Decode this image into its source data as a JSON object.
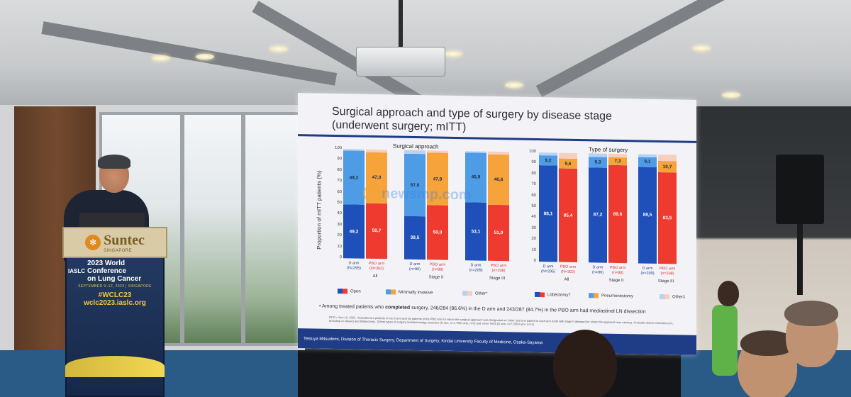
{
  "slide": {
    "title_line1": "Surgical approach and type of surgery by disease stage",
    "title_line2": "(underwent surgery; mITT)",
    "ylabel": "Proportion of mITT patients (%)",
    "footnote_main_pre": "Among treated patients who ",
    "footnote_main_bold": "completed",
    "footnote_main_post": " surgery, 246/284 (86.6%) in the D arm and 243/287 (84.7%) in the PBO arm had mediastinal LN dissection",
    "footnote_small": "DCO = Nov 10, 2022. *Includes four patients in the D arm and six patients in the PBO arm for whom the surgical approach was designated as 'other' and one patient in each arm (both with stage II disease) for whom the approach was missing. †Includes sleeve resection (n=), bronchial or sleeve) and bilobectomy. ‡Other types of surgery included wedge resection (D arm, n=1; PBO arm, n=3) and 'other' NOS (D arm, n=7; PBO arm, n=11)",
    "footer": "Tetsuya Mitsudomi, Division of Thoracic Surgery, Department of Surgery, Kindai University Faculty of Medicine, Osaka-Sayama",
    "watermark": "newsmp.com"
  },
  "chart_data": [
    {
      "type": "bar",
      "title": "Surgical approach",
      "ylabel": "Proportion of mITT patients (%)",
      "ylim": [
        0,
        100
      ],
      "yticks": [
        "0",
        "10",
        "20",
        "30",
        "40",
        "50",
        "60",
        "70",
        "80",
        "90",
        "100"
      ],
      "categories": [
        "D arm (N=295)",
        "PBO arm (N=302)",
        "D arm (n=86)",
        "PBO arm (n=88)",
        "D arm (n=209)",
        "PBO arm (n=208)"
      ],
      "groups": [
        "All",
        "Stage II",
        "Stage III"
      ],
      "series": [
        {
          "name": "Open",
          "values": [
            49.2,
            50.7,
            39.5,
            50.0,
            53.1,
            51.0
          ]
        },
        {
          "name": "Minimally invasive",
          "values": [
            49.2,
            47.0,
            57.0,
            47.9,
            45.9,
            46.6
          ]
        },
        {
          "name": "Other*",
          "values": [
            1.6,
            2.3,
            3.5,
            2.1,
            1.0,
            2.4
          ]
        }
      ],
      "data_labels": {
        "Open": [
          "49,2",
          "50,7",
          "39,5",
          "50,0",
          "53,1",
          "51,0"
        ],
        "Minimally invasive": [
          "49,2",
          "47,0",
          "57,0",
          "47,9",
          "45,9",
          "46,6"
        ]
      },
      "legend": [
        "Open",
        "Minimally invasive",
        "Other*"
      ],
      "legend_position": "bottom"
    },
    {
      "type": "bar",
      "title": "Type of surgery",
      "ylim": [
        0,
        100
      ],
      "yticks": [
        "0",
        "10",
        "20",
        "30",
        "40",
        "50",
        "60",
        "70",
        "80",
        "90",
        "100"
      ],
      "categories": [
        "D arm (N=295)",
        "PBO arm (N=302)",
        "D arm (n=86)",
        "PBO arm (n=88)",
        "D arm (n=209)",
        "PBO arm (n=208)"
      ],
      "groups": [
        "All",
        "Stage II",
        "Stage III"
      ],
      "series": [
        {
          "name": "Lobectomy†",
          "values": [
            88.1,
            85.4,
            87.2,
            89.6,
            88.5,
            83.5
          ]
        },
        {
          "name": "Pneumonectomy",
          "values": [
            9.2,
            9.6,
            9.3,
            7.3,
            9.1,
            10.7
          ]
        },
        {
          "name": "Other‡",
          "values": [
            2.7,
            5.0,
            3.5,
            3.1,
            2.4,
            5.8
          ]
        }
      ],
      "data_labels": {
        "Lobectomy†": [
          "88,1",
          "85,4",
          "87,2",
          "89,6",
          "88,5",
          "83,5"
        ],
        "Pneumonectomy": [
          "9,2",
          "9,6",
          "9,3",
          "7,3",
          "9,1",
          "10,7"
        ]
      },
      "legend": [
        "Lobectomy†",
        "Pneumonectomy",
        "Other‡"
      ],
      "legend_position": "bottom"
    }
  ],
  "colors": {
    "d_dark": "#1f4fb8",
    "pbo_dark": "#ee3a2f",
    "d_mid": "#4e9be6",
    "pbo_mid": "#f5a33a",
    "d_light": "#b9d2f0",
    "pbo_light": "#f7cfc0",
    "slide_accent": "#1f3c86"
  },
  "podium": {
    "brand": "Suntec",
    "brand_sub": "SINGAPORE",
    "iaslc": "IASLC",
    "conference_line1": "2023 World Conference",
    "conference_line2": "on Lung Cancer",
    "dates": "SEPTEMBER 9–12, 2023 | SINGAPORE",
    "hashtag": "#WCLC23",
    "url": "wclc2023.iaslc.org"
  }
}
